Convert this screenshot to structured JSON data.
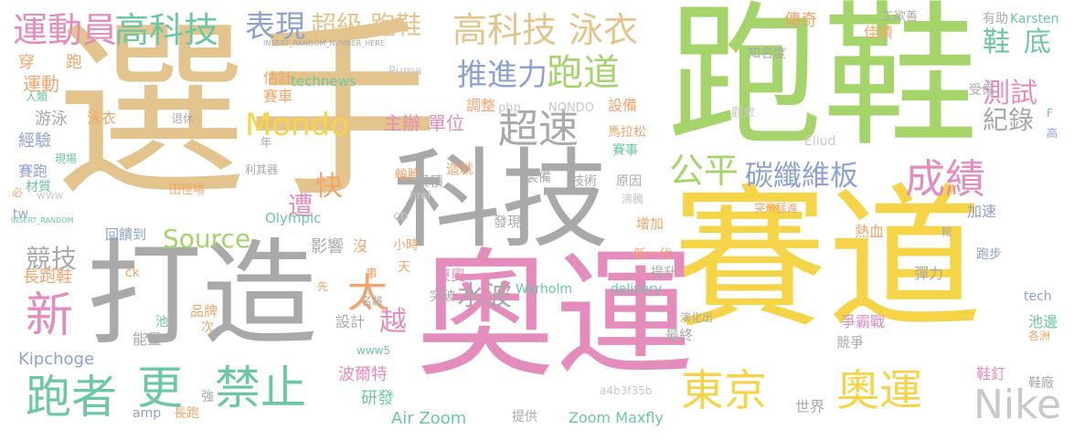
{
  "colors": {
    "tan": "#E2C48C",
    "green": "#A5D46A",
    "gray": "#A9A9A9",
    "pink": "#E48DBD",
    "yellow": "#F5D547",
    "teal": "#6CC7A4",
    "blue": "#8FA1CF",
    "orange": "#F4A46A",
    "red": "#EC7063",
    "lightgray": "#C9C9C9"
  },
  "words": [
    {
      "text": "選手",
      "color": "tan"
    },
    {
      "text": "跑鞋",
      "color": "green"
    },
    {
      "text": "賽道",
      "color": "yellow"
    },
    {
      "text": "奧運",
      "color": "pink"
    },
    {
      "text": "科技",
      "color": "gray"
    },
    {
      "text": "打造",
      "color": "gray"
    },
    {
      "text": "運動員",
      "color": "pink"
    },
    {
      "text": "高科技",
      "color": "teal"
    },
    {
      "text": "表現",
      "color": "blue"
    },
    {
      "text": "超級",
      "color": "tan"
    },
    {
      "text": "跑鞋",
      "color": "tan"
    },
    {
      "text": "高科技",
      "color": "tan"
    },
    {
      "text": "泳衣",
      "color": "tan"
    },
    {
      "text": "傳奇",
      "color": "orange"
    },
    {
      "text": "工欲善",
      "color": "gray"
    },
    {
      "text": "有助",
      "color": "gray"
    },
    {
      "text": "Karsten",
      "color": "teal"
    },
    {
      "text": "佳績",
      "color": "orange"
    },
    {
      "text": "鞋",
      "color": "teal"
    },
    {
      "text": "底",
      "color": "teal"
    },
    {
      "text": "推進力",
      "color": "blue"
    },
    {
      "text": "跑道",
      "color": "green"
    },
    {
      "text": "測試",
      "color": "pink"
    },
    {
      "text": "Mondo",
      "color": "yellow"
    },
    {
      "text": "超速",
      "color": "gray"
    },
    {
      "text": "紀錄",
      "color": "gray"
    },
    {
      "text": "公平",
      "color": "green"
    },
    {
      "text": "碳纖維板",
      "color": "blue"
    },
    {
      "text": "成績",
      "color": "pink"
    },
    {
      "text": "Source",
      "color": "green"
    },
    {
      "text": "禁止",
      "color": "teal"
    },
    {
      "text": "東京",
      "color": "yellow"
    },
    {
      "text": "奧運",
      "color": "yellow"
    },
    {
      "text": "Nike",
      "color": "lightgray"
    },
    {
      "text": "新",
      "color": "pink"
    },
    {
      "text": "跑者",
      "color": "teal"
    },
    {
      "text": "更",
      "color": "teal"
    },
    {
      "text": "太",
      "color": "orange"
    },
    {
      "text": "快",
      "color": "orange"
    },
    {
      "text": "遭",
      "color": "pink"
    },
    {
      "text": "越",
      "color": "pink"
    },
    {
      "text": "競技",
      "color": "gray"
    },
    {
      "text": "長跑鞋",
      "color": "orange"
    },
    {
      "text": "主辦",
      "color": "pink"
    },
    {
      "text": "單位",
      "color": "pink"
    },
    {
      "text": "調整",
      "color": "orange"
    },
    {
      "text": "設備",
      "color": "orange"
    },
    {
      "text": "馬拉松",
      "color": "orange"
    },
    {
      "text": "賽事",
      "color": "teal"
    },
    {
      "text": "Eliud",
      "color": "lightgray"
    },
    {
      "text": "觀眾",
      "color": "lightgray"
    },
    {
      "text": "受傷",
      "color": "gray"
    },
    {
      "text": "高",
      "color": "blue"
    },
    {
      "text": "F",
      "color": "teal"
    },
    {
      "text": "知名度",
      "color": "gray"
    },
    {
      "text": "Puma",
      "color": "lightgray"
    },
    {
      "text": "NONDO",
      "color": "lightgray"
    },
    {
      "text": "php",
      "color": "lightgray"
    },
    {
      "text": "technews",
      "color": "teal"
    },
    {
      "text": "估計",
      "color": "orange"
    },
    {
      "text": "賽車",
      "color": "orange"
    },
    {
      "text": "運動",
      "color": "orange"
    },
    {
      "text": "穿",
      "color": "orange"
    },
    {
      "text": "跑",
      "color": "orange"
    },
    {
      "text": "人類",
      "color": "teal"
    },
    {
      "text": "泳衣",
      "color": "orange"
    },
    {
      "text": "退休",
      "color": "gray"
    },
    {
      "text": "游泳",
      "color": "gray"
    },
    {
      "text": "經驗",
      "color": "blue"
    },
    {
      "text": "賽跑",
      "color": "blue"
    },
    {
      "text": "材質",
      "color": "teal"
    },
    {
      "text": "現場",
      "color": "teal"
    },
    {
      "text": "www",
      "color": "lightgray"
    },
    {
      "text": "tw",
      "color": "blue"
    },
    {
      "text": "必",
      "color": "orange"
    },
    {
      "text": "年",
      "color": "gray"
    },
    {
      "text": "利其器",
      "color": "gray"
    },
    {
      "text": "田徑場",
      "color": "orange"
    },
    {
      "text": "輪胎",
      "color": "orange"
    },
    {
      "text": "造就",
      "color": "orange"
    },
    {
      "text": "累積",
      "color": "gray"
    },
    {
      "text": "裝備",
      "color": "gray"
    },
    {
      "text": "技術",
      "color": "gray"
    },
    {
      "text": "原因",
      "color": "gray"
    },
    {
      "text": "沸騰",
      "color": "lightgray"
    },
    {
      "text": "Olympic",
      "color": "teal"
    },
    {
      "text": "href",
      "color": "lightgray"
    },
    {
      "text": "cb",
      "color": "lightgray"
    },
    {
      "text": "發現",
      "color": "gray"
    },
    {
      "text": "增加",
      "color": "orange"
    },
    {
      "text": "突飛猛進",
      "color": "orange"
    },
    {
      "text": "熱血",
      "color": "orange"
    },
    {
      "text": "加速",
      "color": "blue"
    },
    {
      "text": "靴",
      "color": "gray"
    },
    {
      "text": "回饋到",
      "color": "blue"
    },
    {
      "text": "影響",
      "color": "gray"
    },
    {
      "text": "沒",
      "color": "orange"
    },
    {
      "text": "小時",
      "color": "orange"
    },
    {
      "text": "新一代",
      "color": "orange"
    },
    {
      "text": "跑步",
      "color": "blue"
    },
    {
      "text": "彈力",
      "color": "gray"
    },
    {
      "text": "ck",
      "color": "orange"
    },
    {
      "text": "事",
      "color": "orange"
    },
    {
      "text": "天",
      "color": "orange"
    },
    {
      "text": "東奧",
      "color": "pink"
    },
    {
      "text": "水波",
      "color": "gray"
    },
    {
      "text": "提升",
      "color": "gray"
    },
    {
      "text": "突破",
      "color": "gray"
    },
    {
      "text": "Warholm",
      "color": "teal"
    },
    {
      "text": "delivery",
      "color": "teal"
    },
    {
      "text": "tech",
      "color": "blue"
    },
    {
      "text": "先",
      "color": "orange"
    },
    {
      "text": "名將",
      "color": "gray"
    },
    {
      "text": "品牌",
      "color": "orange"
    },
    {
      "text": "池",
      "color": "teal"
    },
    {
      "text": "次",
      "color": "orange"
    },
    {
      "text": "能量",
      "color": "gray"
    },
    {
      "text": "設計",
      "color": "gray"
    },
    {
      "text": "最終",
      "color": "gray"
    },
    {
      "text": "演化出",
      "color": "gray"
    },
    {
      "text": "爭霸戰",
      "color": "pink"
    },
    {
      "text": "競爭",
      "color": "gray"
    },
    {
      "text": "池邊",
      "color": "teal"
    },
    {
      "text": "各洲",
      "color": "orange"
    },
    {
      "text": "Kipchoge",
      "color": "blue"
    },
    {
      "text": "www5",
      "color": "teal"
    },
    {
      "text": "波爾特",
      "color": "pink"
    },
    {
      "text": "鞋釘",
      "color": "pink"
    },
    {
      "text": "鞋廠",
      "color": "gray"
    },
    {
      "text": "研發",
      "color": "teal"
    },
    {
      "text": "a4b3f35b",
      "color": "lightgray"
    },
    {
      "text": "強",
      "color": "gray"
    },
    {
      "text": "世界",
      "color": "gray"
    },
    {
      "text": "amp",
      "color": "blue"
    },
    {
      "text": "長跑",
      "color": "orange"
    },
    {
      "text": "Air Zoom",
      "color": "teal"
    },
    {
      "text": "提供",
      "color": "gray"
    },
    {
      "text": "Zoom Maxfly",
      "color": "teal"
    },
    {
      "text": "INSERT_RANDOM_NUMBER_HERE",
      "color": "gray"
    },
    {
      "text": "INSERT_RANDOM",
      "color": "teal"
    }
  ]
}
